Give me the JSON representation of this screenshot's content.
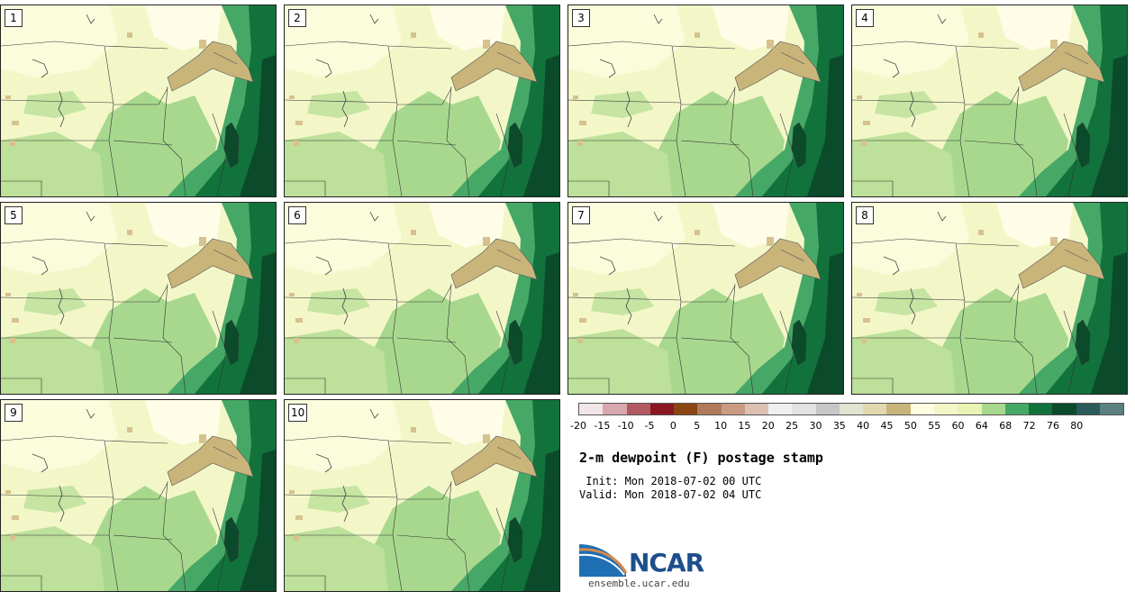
{
  "title": "2-m dewpoint (F) postage stamp",
  "init": " Init: Mon 2018-07-02 00 UTC",
  "valid": "Valid: Mon 2018-07-02 04 UTC",
  "members": [
    "1",
    "2",
    "3",
    "4",
    "5",
    "6",
    "7",
    "8",
    "9",
    "10"
  ],
  "colorbar": {
    "ticks": [
      "-20",
      "-15",
      "-10",
      "-5",
      "0",
      "5",
      "10",
      "15",
      "20",
      "25",
      "30",
      "35",
      "40",
      "45",
      "50",
      "55",
      "60",
      "64",
      "68",
      "72",
      "76",
      "80"
    ],
    "colors": [
      "#f2e6e8",
      "#d9a7ae",
      "#b25a62",
      "#8b1722",
      "#8b4513",
      "#b07a5a",
      "#c89c84",
      "#dcc0b1",
      "#f0f0f0",
      "#e2e2e2",
      "#c7c7c7",
      "#e3e3d2",
      "#e2d8b0",
      "#c9b47a",
      "#fffde1",
      "#f3f7c8",
      "#e9f3b4",
      "#a8d88e",
      "#46a866",
      "#12723c",
      "#0b4a2a",
      "#2a5a5a",
      "#5a8080"
    ]
  },
  "logo": {
    "name": "NCAR",
    "url": "ensemble.ucar.edu"
  }
}
